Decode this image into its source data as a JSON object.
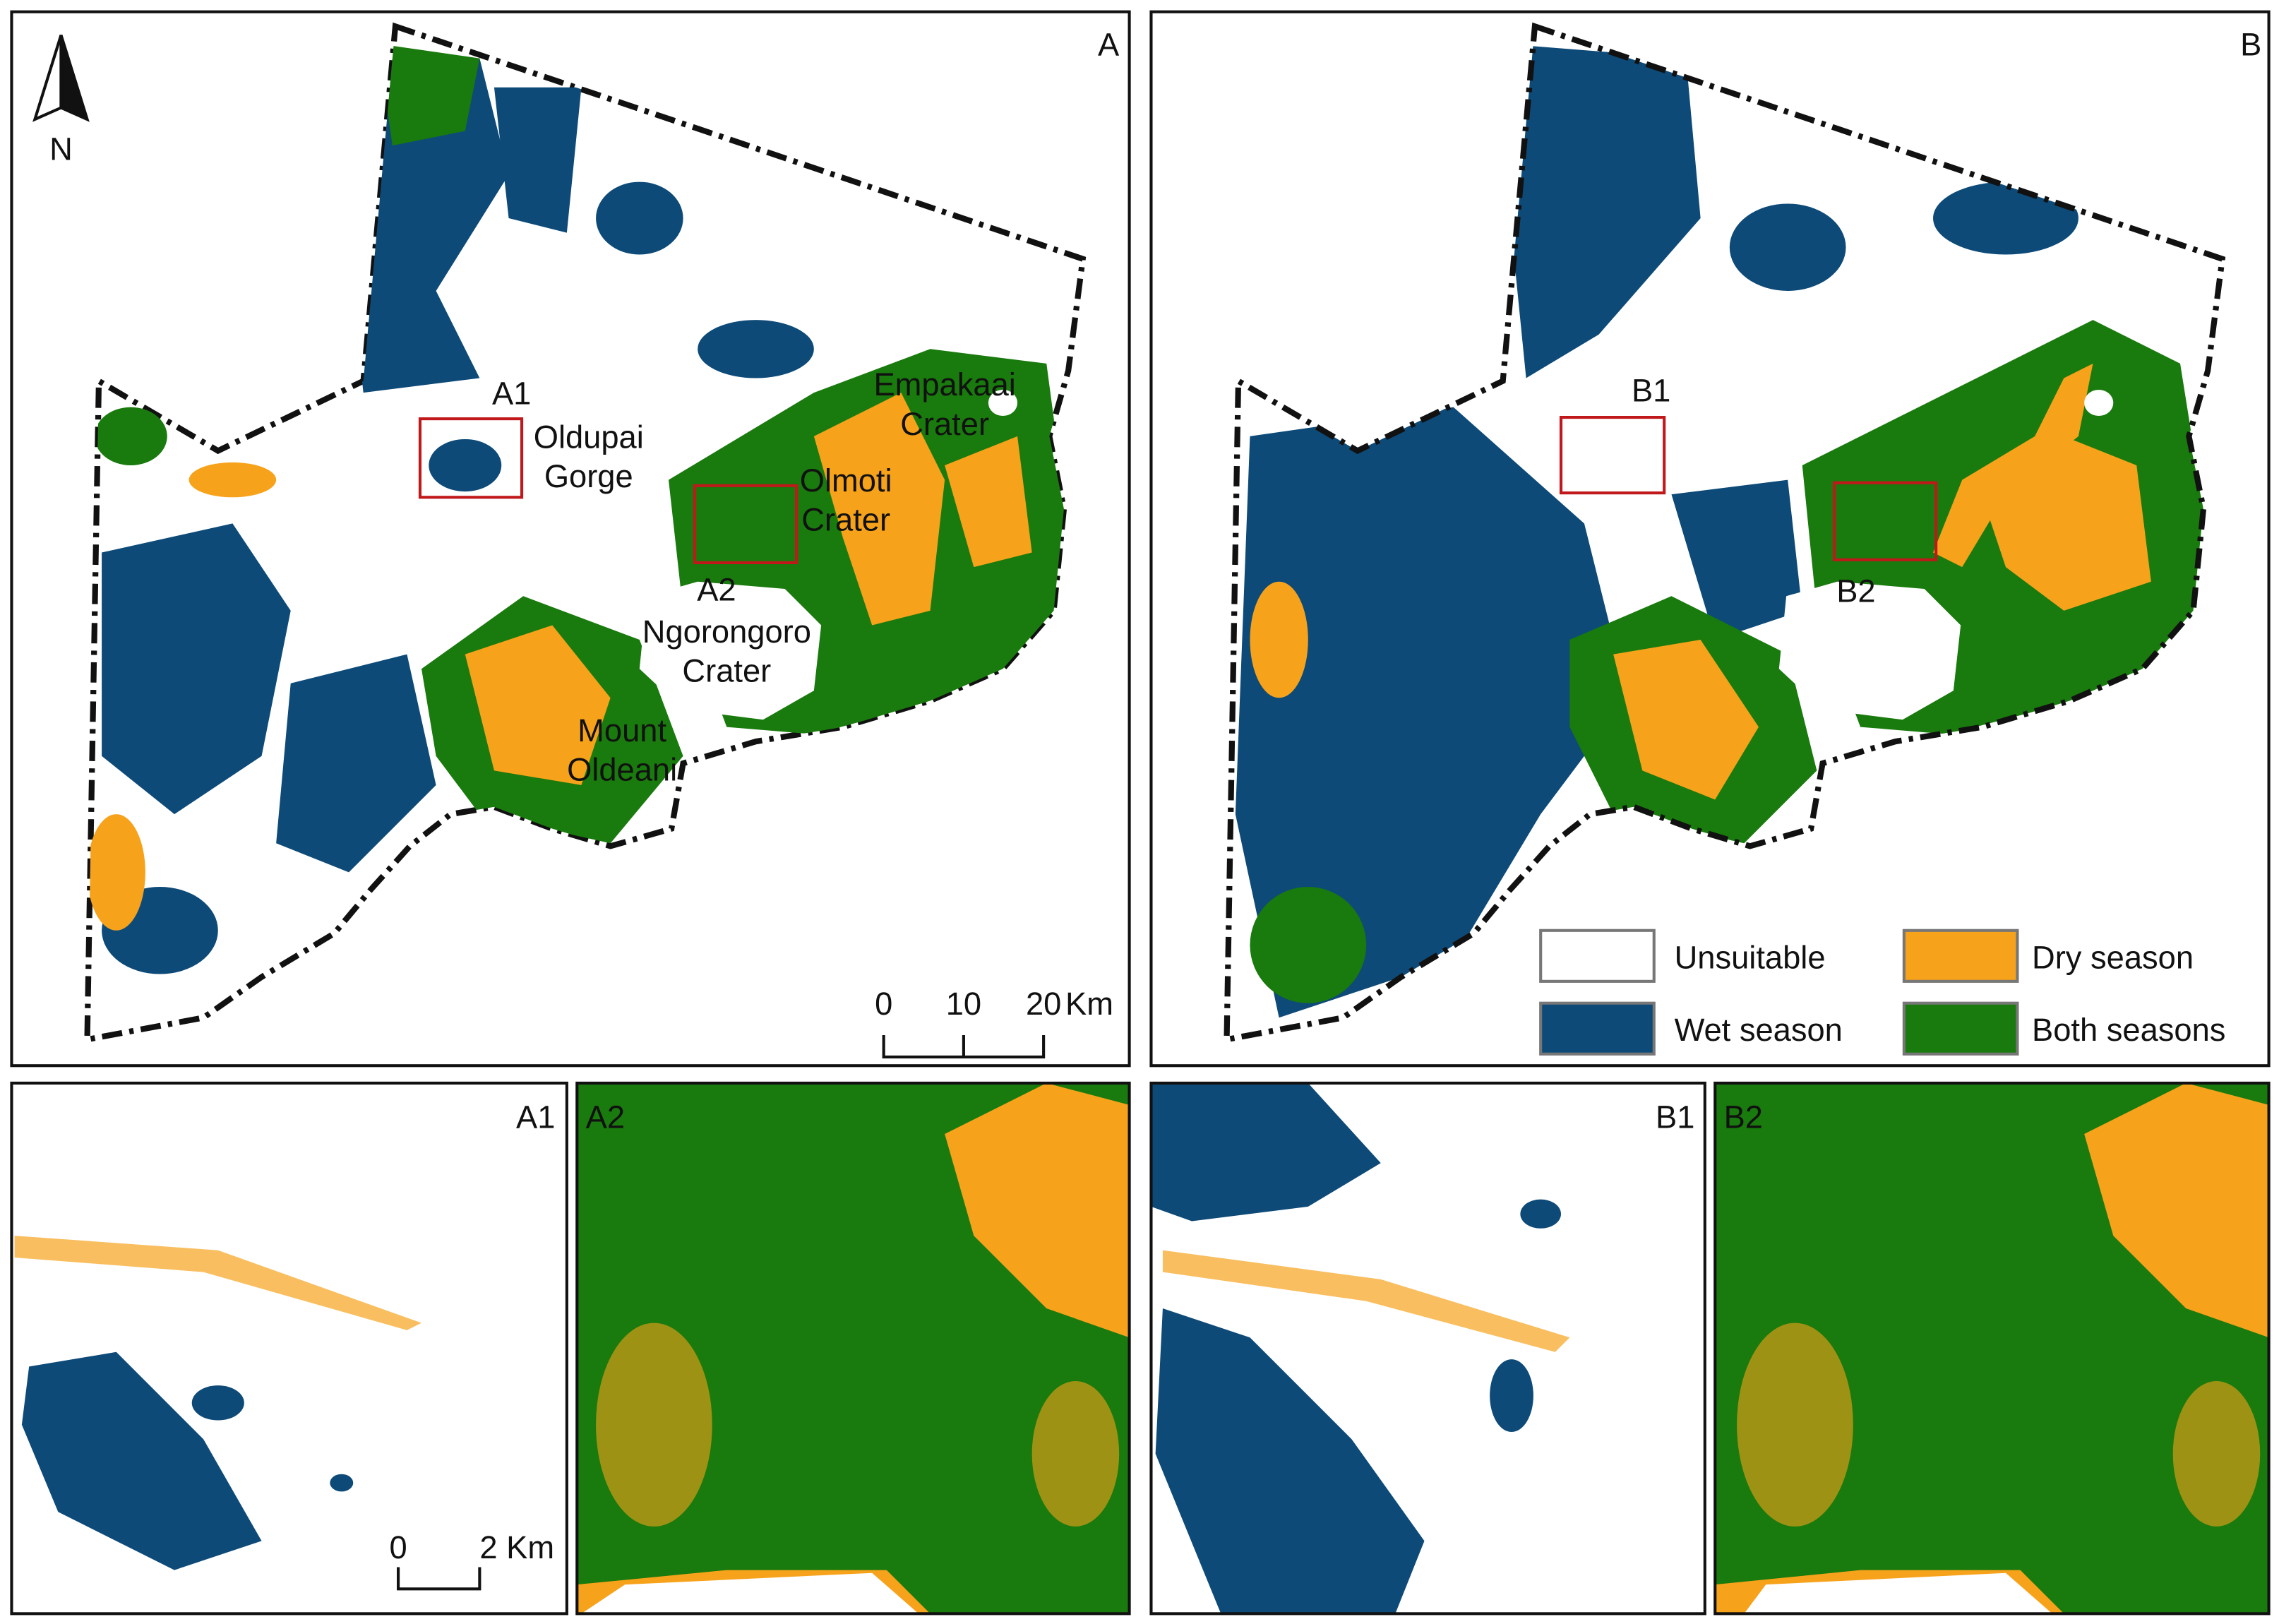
{
  "panels": {
    "A": "A",
    "B": "B",
    "A1": "A1",
    "A2": "A2",
    "B1": "B1",
    "B2": "B2"
  },
  "north_arrow": "N",
  "map_a": {
    "box_labels": [
      "A1",
      "A2"
    ],
    "places": [
      {
        "lines": [
          "Oldupai",
          "Gorge"
        ]
      },
      {
        "lines": [
          "Olmoti",
          "Crater"
        ]
      },
      {
        "lines": [
          "Empakaai",
          "Crater"
        ]
      },
      {
        "lines": [
          "Ngorongoro",
          "Crater"
        ]
      },
      {
        "lines": [
          "Mount",
          "Oldeani"
        ]
      }
    ],
    "scale_bar": {
      "ticks": [
        "0",
        "10",
        "20"
      ],
      "unit": "Km"
    }
  },
  "map_b": {
    "box_labels": [
      "B1",
      "B2"
    ]
  },
  "legend": [
    "Unsuitable",
    "Wet season",
    "Dry season",
    "Both seasons"
  ],
  "inset_a1": {
    "scale_bar": {
      "ticks": [
        "0",
        "2 Km"
      ]
    }
  }
}
